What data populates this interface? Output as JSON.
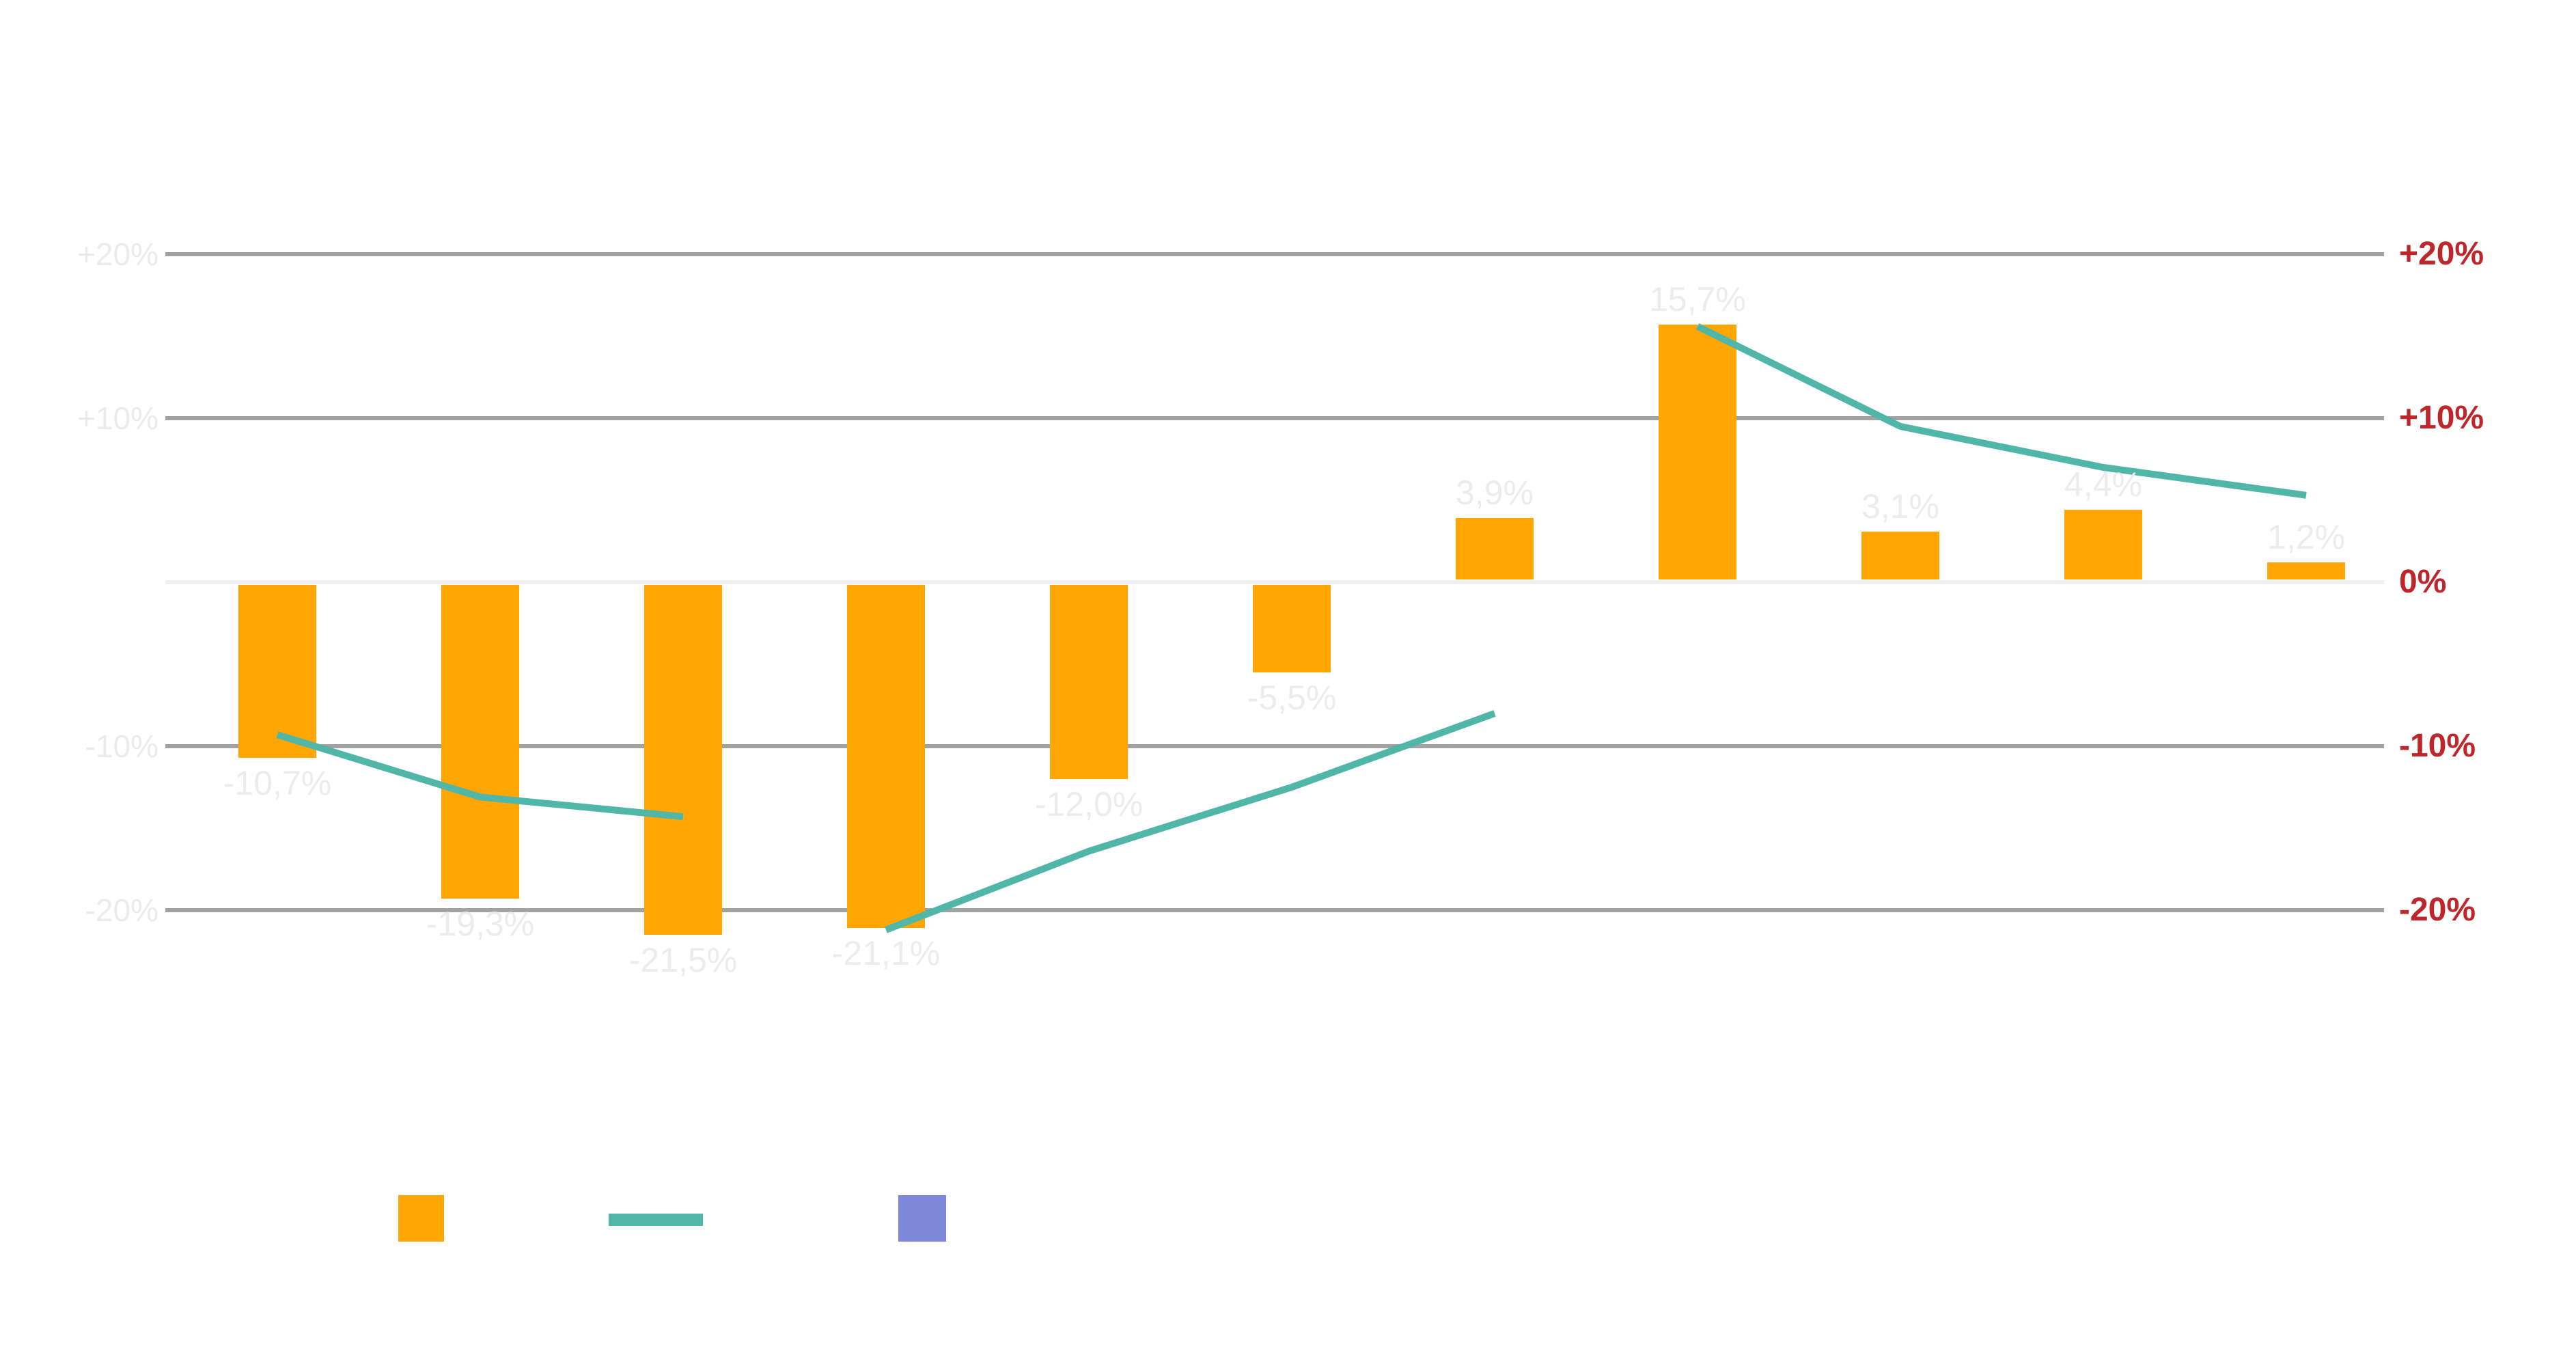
{
  "page": {
    "background": "#FFFFFF",
    "title": ""
  },
  "chart_data": {
    "type": "bar+line",
    "title": "",
    "xlabel": "",
    "ylabel": "",
    "x_category_labels_visible": false,
    "ylim": [
      -25,
      22
    ],
    "gridline_values": [
      20,
      10,
      0,
      -10,
      -20
    ],
    "y_axis_left": {
      "labels": [
        "+20%",
        "+10%",
        "-10%",
        "-20%"
      ],
      "values": [
        20,
        10,
        -10,
        -20
      ],
      "color": "#EBEBEB"
    },
    "y_axis_right": {
      "labels": [
        "+20%",
        "+10%",
        "0%",
        "-10%",
        "-20%"
      ],
      "values": [
        20,
        10,
        0,
        -10,
        -20
      ],
      "color": "#BE262B"
    },
    "bar_series": {
      "name": "bars",
      "color": "#FFA504",
      "values": [
        -10.7,
        -19.3,
        -21.5,
        -21.1,
        -12.0,
        -5.5,
        3.9,
        15.7,
        3.1,
        4.4,
        1.2
      ],
      "labels": [
        "-10,7%",
        "-19,3%",
        "-21,5%",
        "-21,1%",
        "-12,0%",
        "-5,5%",
        "3,9%",
        "15,7%",
        "3,1%",
        "4,4%",
        "1,2%"
      ],
      "label_color": "#ECECEC"
    },
    "line_series": {
      "name": "trend-line",
      "color": "#4FB6A8",
      "stroke_width": 10,
      "segments": [
        {
          "points": [
            {
              "index": 0,
              "value": -9.3
            },
            {
              "index": 1,
              "value": -13.1
            },
            {
              "index": 2,
              "value": -14.3
            }
          ]
        },
        {
          "points": [
            {
              "index": 3,
              "value": -21.2
            },
            {
              "index": 4,
              "value": -16.4
            },
            {
              "index": 5,
              "value": -12.5
            },
            {
              "index": 6,
              "value": -8.0
            }
          ]
        },
        {
          "points": [
            {
              "index": 7,
              "value": 15.6
            },
            {
              "index": 8,
              "value": 9.5
            },
            {
              "index": 9,
              "value": 7.0
            },
            {
              "index": 10,
              "value": 5.3
            }
          ]
        }
      ]
    },
    "grid": {
      "normal_color": "#A2A2A2",
      "zero_color": "#F0F0F0"
    },
    "legend_position": "bottom"
  },
  "legend": {
    "items": [
      {
        "swatch": "bar-square",
        "color": "#FFA504",
        "label": ""
      },
      {
        "swatch": "line",
        "color": "#4FB6A8",
        "label": ""
      },
      {
        "swatch": "square",
        "color": "#7D88DB",
        "label": ""
      }
    ]
  }
}
